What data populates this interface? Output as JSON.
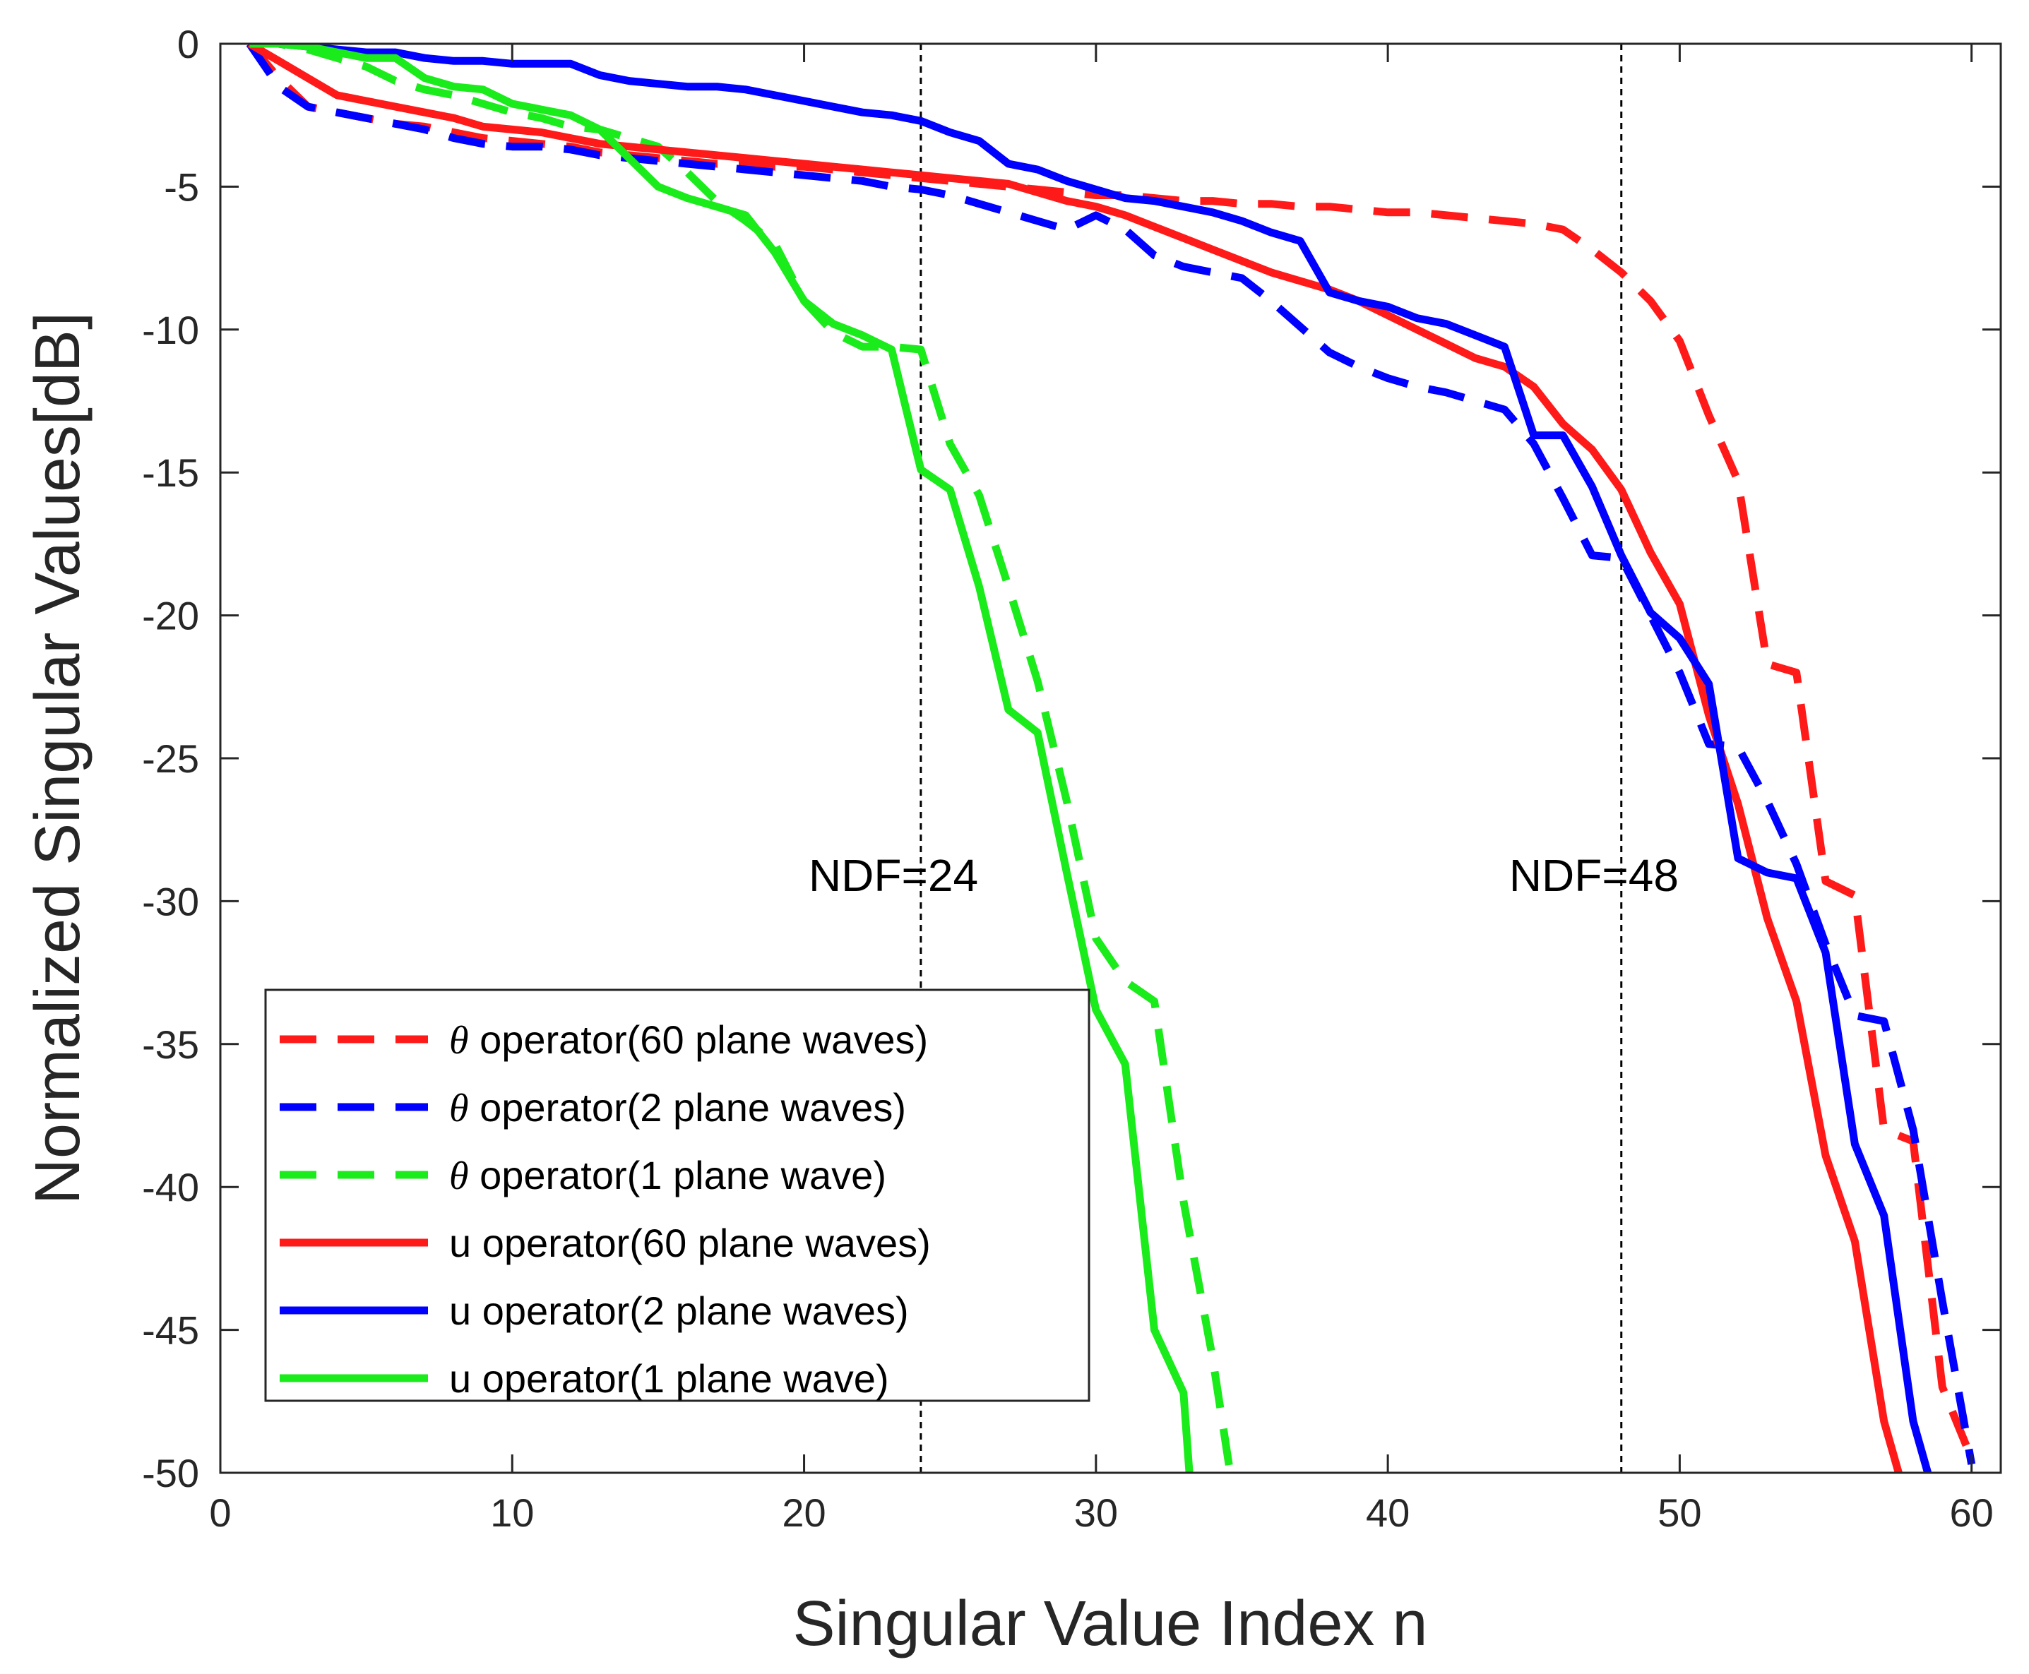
{
  "chart_data": {
    "type": "line",
    "title": "",
    "xlabel": "Singular Value Index n",
    "ylabel": "Normalized Singular Values[dB]",
    "xlim": [
      0,
      61
    ],
    "ylim": [
      -50,
      0
    ],
    "xticks": [
      0,
      10,
      20,
      30,
      40,
      50,
      60
    ],
    "yticks": [
      0,
      -5,
      -10,
      -15,
      -20,
      -25,
      -30,
      -35,
      -40,
      -45,
      -50
    ],
    "grid": false,
    "legend_position": "bottom-left",
    "annotations": [
      {
        "label": "NDF=",
        "value": "24",
        "x": 24
      },
      {
        "label": "NDF=",
        "value": "48",
        "x": 48
      }
    ],
    "series": [
      {
        "name": "θ  operator(60 plane waves)",
        "symbol": "θ",
        "label_text": "  operator(60 plane waves)",
        "color": "#ff1a1a",
        "style": "dashed",
        "x": [
          1,
          2,
          3,
          4,
          5,
          6,
          7,
          8,
          9,
          10,
          11,
          12,
          13,
          14,
          15,
          16,
          17,
          18,
          19,
          20,
          21,
          22,
          23,
          24,
          25,
          26,
          27,
          28,
          29,
          30,
          31,
          32,
          33,
          34,
          35,
          36,
          37,
          38,
          39,
          40,
          41,
          42,
          43,
          44,
          45,
          46,
          47,
          48,
          49,
          50,
          51,
          52,
          53,
          54,
          55,
          56,
          57,
          58,
          59,
          60
        ],
        "values": [
          0,
          -1.2,
          -2.2,
          -2.4,
          -2.6,
          -2.8,
          -2.9,
          -3.1,
          -3.3,
          -3.4,
          -3.5,
          -3.6,
          -3.8,
          -3.9,
          -4.0,
          -4.1,
          -4.2,
          -4.2,
          -4.3,
          -4.3,
          -4.4,
          -4.5,
          -4.6,
          -4.7,
          -4.8,
          -4.9,
          -5.0,
          -5.1,
          -5.2,
          -5.3,
          -5.3,
          -5.4,
          -5.5,
          -5.5,
          -5.6,
          -5.6,
          -5.7,
          -5.7,
          -5.8,
          -5.9,
          -5.9,
          -6.0,
          -6.1,
          -6.2,
          -6.3,
          -6.5,
          -7.2,
          -8.0,
          -9.0,
          -10.4,
          -13.0,
          -15.3,
          -21.7,
          -22.0,
          -29.3,
          -29.8,
          -38.0,
          -38.4,
          -47.0,
          -49.5
        ]
      },
      {
        "name": "θ operator(2 plane waves)",
        "symbol": "θ",
        "label_text": " operator(2 plane waves)",
        "color": "#0000ff",
        "style": "dashed",
        "x": [
          1,
          2,
          3,
          4,
          5,
          6,
          7,
          8,
          9,
          10,
          11,
          12,
          13,
          14,
          15,
          16,
          17,
          18,
          19,
          20,
          21,
          22,
          23,
          24,
          25,
          26,
          27,
          28,
          29,
          30,
          31,
          32,
          33,
          34,
          35,
          36,
          37,
          38,
          39,
          40,
          41,
          42,
          43,
          44,
          45,
          46,
          47,
          48,
          49,
          50,
          51,
          52,
          53,
          54,
          55,
          56,
          57,
          58,
          59,
          60
        ],
        "values": [
          0,
          -1.5,
          -2.2,
          -2.4,
          -2.6,
          -2.8,
          -3.0,
          -3.3,
          -3.5,
          -3.6,
          -3.6,
          -3.7,
          -3.9,
          -4.0,
          -4.1,
          -4.2,
          -4.3,
          -4.4,
          -4.5,
          -4.6,
          -4.7,
          -4.8,
          -5.0,
          -5.1,
          -5.3,
          -5.6,
          -5.9,
          -6.2,
          -6.5,
          -6.0,
          -6.5,
          -7.4,
          -7.8,
          -8.0,
          -8.2,
          -9.0,
          -9.9,
          -10.8,
          -11.3,
          -11.7,
          -12.0,
          -12.2,
          -12.5,
          -12.8,
          -14.0,
          -15.9,
          -17.9,
          -18.0,
          -20.0,
          -22.0,
          -24.5,
          -24.6,
          -26.5,
          -28.7,
          -31.5,
          -34.0,
          -34.2,
          -38.0,
          -44.0,
          -49.7
        ]
      },
      {
        "name": "θ operator(1 plane wave)",
        "symbol": "θ",
        "label_text": " operator(1 plane wave)",
        "color": "#1aeb1a",
        "style": "dashed",
        "x": [
          1,
          2,
          3,
          4,
          5,
          6,
          7,
          8,
          9,
          10,
          11,
          12,
          13,
          14,
          15,
          16,
          17,
          18,
          19,
          20,
          21,
          22,
          23,
          24,
          25,
          26,
          27,
          28,
          29,
          30,
          31,
          32,
          33,
          34,
          34.6
        ],
        "values": [
          0,
          0,
          -0.2,
          -0.5,
          -0.8,
          -1.3,
          -1.6,
          -1.8,
          -2.1,
          -2.4,
          -2.6,
          -2.9,
          -3.0,
          -3.3,
          -3.6,
          -4.5,
          -5.5,
          -6.2,
          -7.0,
          -9.0,
          -10.1,
          -10.6,
          -10.6,
          -10.7,
          -14.0,
          -15.8,
          -19.0,
          -22.3,
          -26.5,
          -31.3,
          -32.8,
          -33.5,
          -40.5,
          -46.0,
          -50.0
        ]
      },
      {
        "name": "u operator(60 plane waves)",
        "color": "#ff1a1a",
        "style": "solid",
        "x": [
          1,
          2,
          3,
          4,
          5,
          6,
          7,
          8,
          9,
          10,
          11,
          12,
          13,
          14,
          15,
          16,
          17,
          18,
          19,
          20,
          21,
          22,
          23,
          24,
          25,
          26,
          27,
          28,
          29,
          30,
          31,
          32,
          33,
          34,
          35,
          36,
          37,
          38,
          39,
          40,
          41,
          42,
          43,
          44,
          45,
          46,
          47,
          48,
          49,
          50,
          51,
          52,
          53,
          54,
          55,
          56,
          57,
          57.5
        ],
        "values": [
          0,
          -0.6,
          -1.2,
          -1.8,
          -2.0,
          -2.2,
          -2.4,
          -2.6,
          -2.9,
          -3.0,
          -3.1,
          -3.3,
          -3.5,
          -3.6,
          -3.7,
          -3.8,
          -3.9,
          -4.0,
          -4.1,
          -4.2,
          -4.3,
          -4.4,
          -4.5,
          -4.6,
          -4.7,
          -4.8,
          -4.9,
          -5.2,
          -5.5,
          -5.7,
          -6.0,
          -6.4,
          -6.8,
          -7.2,
          -7.6,
          -8.0,
          -8.3,
          -8.6,
          -9.0,
          -9.5,
          -10.0,
          -10.5,
          -11.0,
          -11.3,
          -12.0,
          -13.3,
          -14.2,
          -15.6,
          -17.8,
          -19.6,
          -23.5,
          -26.6,
          -30.6,
          -33.5,
          -38.9,
          -41.9,
          -48.2,
          -50.0
        ]
      },
      {
        "name": "u operator(2 plane waves)",
        "color": "#0000ff",
        "style": "solid",
        "x": [
          1,
          2,
          3,
          4,
          5,
          6,
          7,
          8,
          9,
          10,
          11,
          12,
          13,
          14,
          15,
          16,
          17,
          18,
          19,
          20,
          21,
          22,
          23,
          24,
          25,
          26,
          27,
          28,
          29,
          30,
          31,
          32,
          33,
          34,
          35,
          36,
          37,
          38,
          39,
          40,
          41,
          42,
          43,
          44,
          45,
          46,
          47,
          48,
          49,
          50,
          51,
          52,
          53,
          54,
          55,
          56,
          57,
          58,
          58.5
        ],
        "values": [
          0,
          0,
          -0.1,
          -0.2,
          -0.3,
          -0.3,
          -0.5,
          -0.6,
          -0.6,
          -0.7,
          -0.7,
          -0.7,
          -1.1,
          -1.3,
          -1.4,
          -1.5,
          -1.5,
          -1.6,
          -1.8,
          -2.0,
          -2.2,
          -2.4,
          -2.5,
          -2.7,
          -3.1,
          -3.4,
          -4.2,
          -4.4,
          -4.8,
          -5.1,
          -5.4,
          -5.5,
          -5.7,
          -5.9,
          -6.2,
          -6.6,
          -6.9,
          -8.7,
          -9.0,
          -9.2,
          -9.6,
          -9.8,
          -10.2,
          -10.6,
          -13.7,
          -13.7,
          -15.5,
          -17.9,
          -19.9,
          -20.8,
          -22.4,
          -28.5,
          -29.0,
          -29.2,
          -31.8,
          -38.5,
          -41.0,
          -48.2,
          -50.0
        ]
      },
      {
        "name": "u operator(1 plane wave)",
        "color": "#1aeb1a",
        "style": "solid",
        "x": [
          1,
          2,
          3,
          4,
          5,
          6,
          7,
          8,
          9,
          10,
          11,
          12,
          13,
          14,
          15,
          16,
          17,
          18,
          19,
          20,
          21,
          22,
          23,
          24,
          25,
          26,
          27,
          28,
          29,
          30,
          31,
          32,
          33,
          33.2
        ],
        "values": [
          0,
          0,
          -0.1,
          -0.3,
          -0.5,
          -0.5,
          -1.2,
          -1.5,
          -1.6,
          -2.1,
          -2.3,
          -2.5,
          -3.0,
          -4.0,
          -5.0,
          -5.4,
          -5.7,
          -6.0,
          -7.3,
          -9.0,
          -9.8,
          -10.2,
          -10.7,
          -14.9,
          -15.6,
          -19.0,
          -23.3,
          -24.1,
          -29.0,
          -33.8,
          -35.7,
          -45.0,
          -47.2,
          -50.0
        ]
      }
    ]
  }
}
